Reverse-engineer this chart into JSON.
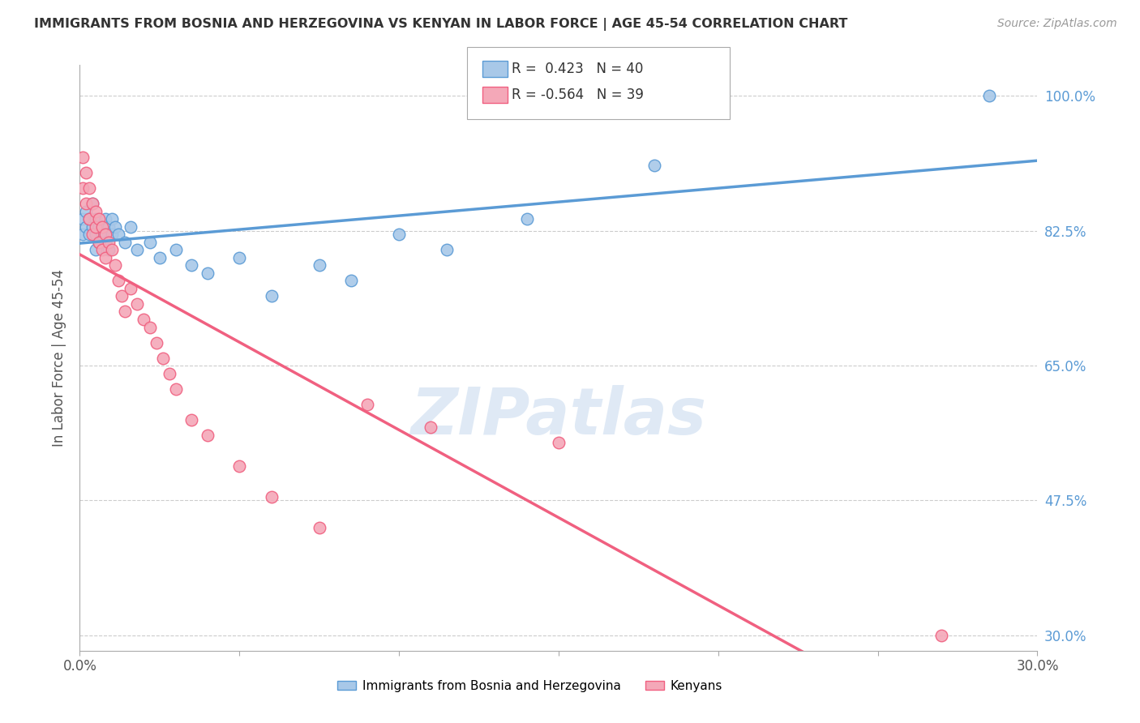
{
  "title": "IMMIGRANTS FROM BOSNIA AND HERZEGOVINA VS KENYAN IN LABOR FORCE | AGE 45-54 CORRELATION CHART",
  "source": "Source: ZipAtlas.com",
  "ylabel": "In Labor Force | Age 45-54",
  "x_min": 0.0,
  "x_max": 0.3,
  "y_min": 0.28,
  "y_max": 1.04,
  "y_ticks": [
    0.3,
    0.475,
    0.65,
    0.825,
    1.0
  ],
  "y_tick_labels": [
    "30.0%",
    "47.5%",
    "65.0%",
    "82.5%",
    "100.0%"
  ],
  "x_ticks": [
    0.0,
    0.05,
    0.1,
    0.15,
    0.2,
    0.25,
    0.3
  ],
  "x_tick_labels": [
    "0.0%",
    "",
    "",
    "",
    "",
    "",
    "30.0%"
  ],
  "bosnia_R": 0.423,
  "bosnia_N": 40,
  "kenyan_R": -0.564,
  "kenyan_N": 39,
  "bosnia_color": "#A8C8E8",
  "kenyan_color": "#F4A8B8",
  "line_bosnia_color": "#5B9BD5",
  "line_kenyan_color": "#F06080",
  "watermark": "ZIPatlas",
  "bosnia_scatter_x": [
    0.001,
    0.001,
    0.002,
    0.002,
    0.003,
    0.003,
    0.004,
    0.004,
    0.005,
    0.005,
    0.005,
    0.006,
    0.006,
    0.007,
    0.007,
    0.008,
    0.008,
    0.009,
    0.009,
    0.01,
    0.01,
    0.011,
    0.012,
    0.014,
    0.016,
    0.018,
    0.022,
    0.025,
    0.03,
    0.035,
    0.04,
    0.05,
    0.06,
    0.075,
    0.085,
    0.1,
    0.115,
    0.14,
    0.18,
    0.285
  ],
  "bosnia_scatter_y": [
    0.82,
    0.84,
    0.83,
    0.85,
    0.84,
    0.82,
    0.83,
    0.86,
    0.84,
    0.82,
    0.8,
    0.83,
    0.81,
    0.83,
    0.82,
    0.84,
    0.81,
    0.83,
    0.8,
    0.82,
    0.84,
    0.83,
    0.82,
    0.81,
    0.83,
    0.8,
    0.81,
    0.79,
    0.8,
    0.78,
    0.77,
    0.79,
    0.74,
    0.78,
    0.76,
    0.82,
    0.8,
    0.84,
    0.91,
    1.0
  ],
  "kenyan_scatter_x": [
    0.001,
    0.001,
    0.002,
    0.002,
    0.003,
    0.003,
    0.004,
    0.004,
    0.005,
    0.005,
    0.006,
    0.006,
    0.007,
    0.007,
    0.008,
    0.008,
    0.009,
    0.01,
    0.011,
    0.012,
    0.013,
    0.014,
    0.016,
    0.018,
    0.02,
    0.022,
    0.024,
    0.026,
    0.028,
    0.03,
    0.035,
    0.04,
    0.05,
    0.06,
    0.075,
    0.09,
    0.11,
    0.15,
    0.27
  ],
  "kenyan_scatter_y": [
    0.88,
    0.92,
    0.86,
    0.9,
    0.88,
    0.84,
    0.86,
    0.82,
    0.85,
    0.83,
    0.84,
    0.81,
    0.83,
    0.8,
    0.82,
    0.79,
    0.81,
    0.8,
    0.78,
    0.76,
    0.74,
    0.72,
    0.75,
    0.73,
    0.71,
    0.7,
    0.68,
    0.66,
    0.64,
    0.62,
    0.58,
    0.56,
    0.52,
    0.48,
    0.44,
    0.6,
    0.57,
    0.55,
    0.3
  ],
  "background_color": "#FFFFFF",
  "grid_color": "#CCCCCC",
  "axis_color": "#AAAAAA",
  "title_color": "#333333",
  "source_color": "#999999",
  "tick_color_right": "#5B9BD5",
  "tick_color_bottom": "#555555"
}
